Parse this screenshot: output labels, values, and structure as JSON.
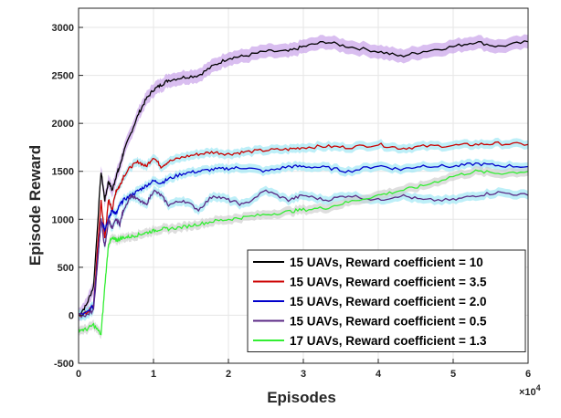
{
  "chart_data": {
    "type": "line",
    "title": "",
    "xlabel": "Episodes",
    "ylabel": "Episode Reward",
    "x_multiplier_label": "×10",
    "x_multiplier_exp": "4",
    "xlim": [
      0,
      6
    ],
    "ylim": [
      -500,
      3200
    ],
    "xticks": [
      0,
      1,
      2,
      3,
      4,
      5,
      6
    ],
    "yticks": [
      -500,
      0,
      500,
      1000,
      1500,
      2000,
      2500,
      3000
    ],
    "grid": true,
    "legend_position": "bottom-right",
    "x": [
      0,
      0.1,
      0.2,
      0.3,
      0.35,
      0.4,
      0.45,
      0.5,
      0.55,
      0.6,
      0.7,
      0.8,
      0.9,
      1.0,
      1.1,
      1.2,
      1.4,
      1.6,
      1.8,
      2.0,
      2.2,
      2.5,
      2.8,
      3.0,
      3.3,
      3.6,
      4.0,
      4.3,
      4.6,
      5.0,
      5.3,
      5.6,
      6.0
    ],
    "series": [
      {
        "name": "15 UAVs, Reward coefficient = 10",
        "color": "#000000",
        "band_color": "#c59be8",
        "values": [
          0,
          100,
          300,
          1500,
          1200,
          1400,
          1300,
          1450,
          1550,
          1700,
          1900,
          2100,
          2250,
          2350,
          2400,
          2450,
          2480,
          2500,
          2600,
          2680,
          2700,
          2750,
          2750,
          2800,
          2850,
          2800,
          2750,
          2700,
          2750,
          2800,
          2850,
          2800,
          2850
        ]
      },
      {
        "name": "15 UAVs, Reward coefficient = 3.5",
        "color": "#cc0000",
        "band_color": "#99e6f5",
        "values": [
          0,
          20,
          100,
          1200,
          800,
          1200,
          1100,
          1300,
          1350,
          1450,
          1550,
          1600,
          1550,
          1650,
          1550,
          1600,
          1650,
          1680,
          1700,
          1680,
          1700,
          1720,
          1730,
          1750,
          1760,
          1750,
          1780,
          1740,
          1760,
          1770,
          1780,
          1790,
          1780
        ]
      },
      {
        "name": "15 UAVs, Reward coefficient = 2.0",
        "color": "#0000cc",
        "band_color": "#99e6f5",
        "values": [
          0,
          20,
          100,
          1000,
          900,
          1000,
          1100,
          1050,
          1150,
          1200,
          1250,
          1300,
          1350,
          1400,
          1380,
          1420,
          1480,
          1500,
          1520,
          1530,
          1540,
          1500,
          1550,
          1550,
          1540,
          1500,
          1560,
          1520,
          1560,
          1550,
          1580,
          1560,
          1550
        ]
      },
      {
        "name": "15 UAVs, Reward coefficient = 0.5",
        "color": "#5b2a86",
        "band_color": "#99e6f5",
        "values": [
          0,
          0,
          50,
          1000,
          700,
          1000,
          900,
          1000,
          950,
          1100,
          1250,
          1200,
          1150,
          1300,
          1250,
          1150,
          1200,
          1100,
          1250,
          1200,
          1150,
          1300,
          1200,
          1250,
          1200,
          1250,
          1200,
          1250,
          1200,
          1200,
          1250,
          1280,
          1250
        ]
      },
      {
        "name": "17 UAVs, Reward coefficient = 1.3",
        "color": "#33ee33",
        "band_color": "#cccccc",
        "values": [
          -150,
          -150,
          -100,
          -200,
          300,
          750,
          800,
          780,
          800,
          810,
          820,
          840,
          860,
          880,
          900,
          900,
          920,
          950,
          980,
          1000,
          1020,
          1050,
          1080,
          1100,
          1120,
          1180,
          1250,
          1300,
          1350,
          1450,
          1500,
          1480,
          1500
        ]
      }
    ]
  }
}
